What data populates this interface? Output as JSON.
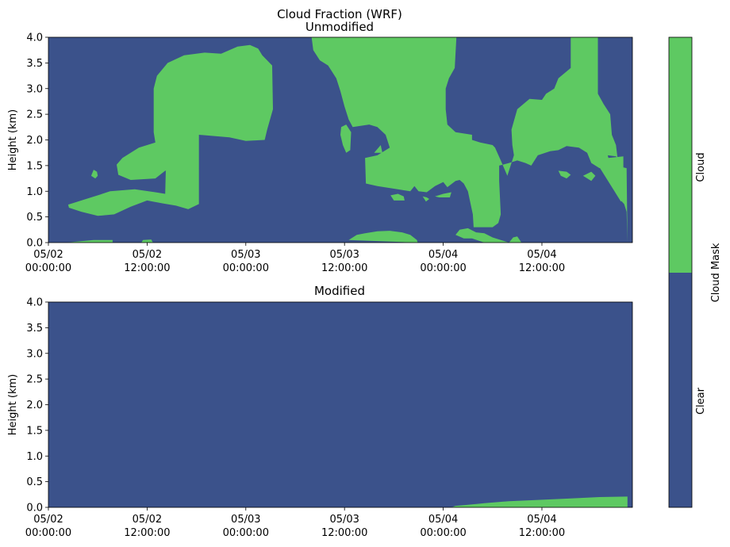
{
  "figure": {
    "suptitle": "Cloud Fraction (WRF)"
  },
  "colors": {
    "clear": "#3b528b",
    "cloud": "#5ec962"
  },
  "chart_data": [
    {
      "type": "heatmap",
      "title": "Unmodified",
      "ylabel": "Height (km)",
      "ylim": [
        0.0,
        4.0
      ],
      "yticks": [
        "0.0",
        "0.5",
        "1.0",
        "1.5",
        "2.0",
        "2.5",
        "3.0",
        "3.5",
        "4.0"
      ],
      "xlim": [
        "05/02 00:00:00",
        "05/04 23:00:00"
      ],
      "xticks": [
        {
          "date": "05/02",
          "time": "00:00:00",
          "hours": 0
        },
        {
          "date": "05/02",
          "time": "12:00:00",
          "hours": 12
        },
        {
          "date": "05/03",
          "time": "00:00:00",
          "hours": 24
        },
        {
          "date": "05/03",
          "time": "12:00:00",
          "hours": 36
        },
        {
          "date": "05/04",
          "time": "00:00:00",
          "hours": 48
        },
        {
          "date": "05/04",
          "time": "12:00:00",
          "hours": 60
        }
      ],
      "background": "Clear",
      "cloud_regions": [
        [
          [
            2.4,
            0.74
          ],
          [
            4.0,
            0.82
          ],
          [
            6.0,
            0.92
          ],
          [
            7.5,
            1.0
          ],
          [
            10.5,
            1.04
          ],
          [
            13.0,
            0.98
          ],
          [
            14.2,
            0.95
          ],
          [
            14.3,
            1.55
          ],
          [
            14.8,
            1.75
          ],
          [
            16.0,
            1.85
          ],
          [
            18.0,
            1.95
          ],
          [
            18.3,
            1.45
          ],
          [
            16.5,
            1.38
          ],
          [
            14.2,
            1.4
          ],
          [
            13.0,
            1.25
          ],
          [
            10.0,
            1.22
          ],
          [
            8.5,
            1.32
          ],
          [
            8.3,
            1.52
          ],
          [
            9.0,
            1.65
          ],
          [
            11.0,
            1.85
          ],
          [
            13.0,
            1.95
          ],
          [
            12.8,
            2.15
          ],
          [
            12.8,
            3.0
          ],
          [
            13.2,
            3.25
          ],
          [
            14.5,
            3.5
          ],
          [
            16.5,
            3.65
          ],
          [
            19.0,
            3.7
          ],
          [
            21.0,
            3.68
          ],
          [
            23.0,
            3.82
          ],
          [
            24.5,
            3.85
          ],
          [
            25.5,
            3.78
          ],
          [
            26.0,
            3.65
          ],
          [
            27.2,
            3.45
          ],
          [
            27.3,
            2.6
          ],
          [
            26.6,
            2.2
          ],
          [
            26.3,
            2.0
          ],
          [
            24.0,
            1.98
          ],
          [
            22.0,
            2.05
          ],
          [
            18.3,
            2.1
          ],
          [
            18.3,
            0.75
          ],
          [
            17.0,
            0.65
          ],
          [
            15.5,
            0.72
          ],
          [
            14.0,
            0.76
          ],
          [
            12.0,
            0.82
          ],
          [
            10.0,
            0.7
          ],
          [
            8.0,
            0.55
          ],
          [
            6.0,
            0.52
          ],
          [
            4.0,
            0.6
          ],
          [
            2.5,
            0.68
          ]
        ],
        [
          [
            5.2,
            1.3
          ],
          [
            5.5,
            1.42
          ],
          [
            5.9,
            1.38
          ],
          [
            6.0,
            1.3
          ],
          [
            5.7,
            1.25
          ]
        ],
        [
          [
            2.2,
            0.0
          ],
          [
            5.5,
            0.05
          ],
          [
            7.8,
            0.05
          ],
          [
            7.8,
            0.0
          ]
        ],
        [
          [
            11.3,
            0.0
          ],
          [
            11.5,
            0.05
          ],
          [
            12.5,
            0.06
          ],
          [
            12.7,
            0.0
          ]
        ],
        [
          [
            32.0,
            4.0
          ],
          [
            32.2,
            3.75
          ],
          [
            33.0,
            3.55
          ],
          [
            34.0,
            3.45
          ],
          [
            35.0,
            3.2
          ],
          [
            35.5,
            2.95
          ],
          [
            36.0,
            2.65
          ],
          [
            36.5,
            2.4
          ],
          [
            37.0,
            2.25
          ],
          [
            39.0,
            2.3
          ],
          [
            40.0,
            2.25
          ],
          [
            41.0,
            2.1
          ],
          [
            41.5,
            1.85
          ],
          [
            40.0,
            1.7
          ],
          [
            38.5,
            1.65
          ],
          [
            38.6,
            1.15
          ],
          [
            40.0,
            1.1
          ],
          [
            42.0,
            1.05
          ],
          [
            44.0,
            1.0
          ],
          [
            44.5,
            1.1
          ],
          [
            45.0,
            1.0
          ],
          [
            46.0,
            0.98
          ],
          [
            47.0,
            1.1
          ],
          [
            48.0,
            1.18
          ],
          [
            48.5,
            1.08
          ],
          [
            49.5,
            1.2
          ],
          [
            50.0,
            1.22
          ],
          [
            50.5,
            1.15
          ],
          [
            51.0,
            1.0
          ],
          [
            51.6,
            0.55
          ],
          [
            51.7,
            0.3
          ],
          [
            54.0,
            0.3
          ],
          [
            54.7,
            0.38
          ],
          [
            55.0,
            0.55
          ],
          [
            54.8,
            1.2
          ],
          [
            54.8,
            1.5
          ],
          [
            56.0,
            1.55
          ],
          [
            57.0,
            1.6
          ],
          [
            58.0,
            1.55
          ],
          [
            58.7,
            1.5
          ],
          [
            59.5,
            1.7
          ],
          [
            61.0,
            1.78
          ],
          [
            62.0,
            1.8
          ],
          [
            63.0,
            1.88
          ],
          [
            64.5,
            1.85
          ],
          [
            65.5,
            1.75
          ],
          [
            66.0,
            1.55
          ],
          [
            67.0,
            1.45
          ],
          [
            68.0,
            1.5
          ],
          [
            68.2,
            1.58
          ],
          [
            68.0,
            1.7
          ],
          [
            69.0,
            1.68
          ],
          [
            69.7,
            1.6
          ],
          [
            69.6,
            0.82
          ],
          [
            70.0,
            0.75
          ],
          [
            70.3,
            0.6
          ],
          [
            70.4,
            0.0
          ],
          [
            70.3,
            1.45
          ],
          [
            69.5,
            1.48
          ],
          [
            69.3,
            1.5
          ],
          [
            69.0,
            1.9
          ],
          [
            68.5,
            2.1
          ],
          [
            68.3,
            2.5
          ],
          [
            67.5,
            2.7
          ],
          [
            66.8,
            2.9
          ],
          [
            66.8,
            4.0
          ],
          [
            63.5,
            4.0
          ],
          [
            63.5,
            3.4
          ],
          [
            62.0,
            3.2
          ],
          [
            61.5,
            3.0
          ],
          [
            60.5,
            2.9
          ],
          [
            60.0,
            2.78
          ],
          [
            58.5,
            2.8
          ],
          [
            57.0,
            2.6
          ],
          [
            56.3,
            2.2
          ],
          [
            56.4,
            1.9
          ],
          [
            56.6,
            1.7
          ],
          [
            55.8,
            1.3
          ],
          [
            55.0,
            1.6
          ],
          [
            54.3,
            1.85
          ],
          [
            54.0,
            1.9
          ],
          [
            52.5,
            1.95
          ],
          [
            51.5,
            2.0
          ],
          [
            51.5,
            2.1
          ],
          [
            49.5,
            2.15
          ],
          [
            48.5,
            2.3
          ],
          [
            48.3,
            2.6
          ],
          [
            48.3,
            3.0
          ],
          [
            48.7,
            3.2
          ],
          [
            49.4,
            3.4
          ],
          [
            49.6,
            4.0
          ]
        ],
        [
          [
            35.5,
            2.1
          ],
          [
            35.8,
            1.9
          ],
          [
            36.2,
            1.75
          ],
          [
            36.7,
            1.8
          ],
          [
            36.8,
            2.15
          ],
          [
            36.2,
            2.3
          ],
          [
            35.6,
            2.25
          ]
        ],
        [
          [
            39.6,
            1.75
          ],
          [
            40.4,
            1.9
          ],
          [
            40.6,
            1.75
          ]
        ],
        [
          [
            41.6,
            0.92
          ],
          [
            42.5,
            0.95
          ],
          [
            43.2,
            0.9
          ],
          [
            43.3,
            0.82
          ],
          [
            42.0,
            0.82
          ]
        ],
        [
          [
            36.5,
            0.05
          ],
          [
            37.5,
            0.15
          ],
          [
            38.5,
            0.18
          ],
          [
            40.0,
            0.22
          ],
          [
            41.5,
            0.23
          ],
          [
            43.0,
            0.2
          ],
          [
            44.0,
            0.15
          ],
          [
            44.8,
            0.05
          ],
          [
            44.9,
            0.0
          ]
        ],
        [
          [
            45.5,
            0.9
          ],
          [
            46.0,
            0.88
          ],
          [
            46.3,
            0.85
          ],
          [
            45.9,
            0.8
          ]
        ],
        [
          [
            47.0,
            0.9
          ],
          [
            48.0,
            0.95
          ],
          [
            49.0,
            0.98
          ],
          [
            48.8,
            0.88
          ],
          [
            47.5,
            0.88
          ]
        ],
        [
          [
            49.5,
            0.15
          ],
          [
            50.0,
            0.25
          ],
          [
            51.0,
            0.28
          ],
          [
            52.0,
            0.2
          ],
          [
            53.0,
            0.18
          ],
          [
            54.0,
            0.1
          ],
          [
            55.0,
            0.05
          ],
          [
            56.0,
            0.0
          ],
          [
            54.5,
            0.0
          ],
          [
            53.0,
            0.0
          ],
          [
            51.5,
            0.08
          ],
          [
            50.5,
            0.08
          ]
        ],
        [
          [
            56.0,
            0.0
          ],
          [
            56.5,
            0.1
          ],
          [
            57.0,
            0.12
          ],
          [
            57.3,
            0.05
          ],
          [
            57.5,
            0.0
          ]
        ],
        [
          [
            62.0,
            1.4
          ],
          [
            63.0,
            1.38
          ],
          [
            63.5,
            1.32
          ],
          [
            63.0,
            1.25
          ],
          [
            62.3,
            1.3
          ]
        ],
        [
          [
            65.0,
            1.3
          ],
          [
            66.0,
            1.38
          ],
          [
            66.5,
            1.3
          ],
          [
            66.0,
            1.2
          ]
        ],
        [
          [
            66.4,
            1.62
          ],
          [
            69.9,
            1.68
          ],
          [
            69.9,
            0.85
          ],
          [
            69.6,
            0.8
          ]
        ]
      ]
    },
    {
      "type": "heatmap",
      "title": "Modified",
      "ylabel": "Height (km)",
      "ylim": [
        0.0,
        4.0
      ],
      "yticks": [
        "0.0",
        "0.5",
        "1.0",
        "1.5",
        "2.0",
        "2.5",
        "3.0",
        "3.5",
        "4.0"
      ],
      "xlim": [
        "05/02 00:00:00",
        "05/04 23:00:00"
      ],
      "xticks": [
        {
          "date": "05/02",
          "time": "00:00:00",
          "hours": 0
        },
        {
          "date": "05/02",
          "time": "12:00:00",
          "hours": 12
        },
        {
          "date": "05/03",
          "time": "00:00:00",
          "hours": 24
        },
        {
          "date": "05/03",
          "time": "12:00:00",
          "hours": 36
        },
        {
          "date": "05/04",
          "time": "00:00:00",
          "hours": 48
        },
        {
          "date": "05/04",
          "time": "12:00:00",
          "hours": 60
        }
      ],
      "background": "Clear",
      "cloud_regions": [
        [
          [
            49.0,
            0.0
          ],
          [
            49.5,
            0.03
          ],
          [
            51.0,
            0.05
          ],
          [
            53.0,
            0.08
          ],
          [
            56.0,
            0.12
          ],
          [
            59.0,
            0.14
          ],
          [
            63.0,
            0.17
          ],
          [
            67.0,
            0.2
          ],
          [
            70.4,
            0.21
          ],
          [
            70.4,
            0.0
          ]
        ]
      ]
    }
  ],
  "colorbar": {
    "label": "Cloud Mask",
    "ticks": [
      "Clear",
      "Cloud"
    ]
  }
}
